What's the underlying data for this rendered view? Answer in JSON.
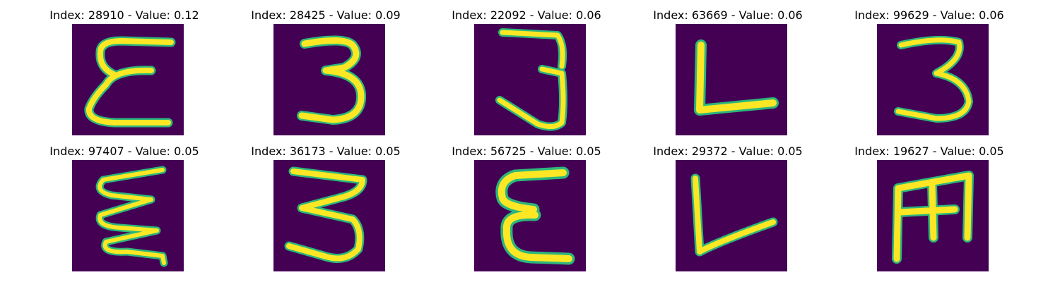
{
  "panels": [
    {
      "title": "Index: 28910 - Value: 0.12",
      "glyph": "epsilon",
      "icon": "handwritten-epsilon-image"
    },
    {
      "title": "Index: 28425 - Value: 0.09",
      "glyph": "three",
      "icon": "handwritten-three-image"
    },
    {
      "title": "Index: 22092 - Value: 0.06",
      "glyph": "three-j",
      "icon": "handwritten-three-image"
    },
    {
      "title": "Index: 63669 - Value: 0.06",
      "glyph": "L",
      "icon": "handwritten-L-image"
    },
    {
      "title": "Index: 99629 - Value: 0.06",
      "glyph": "three-small",
      "icon": "handwritten-three-image"
    },
    {
      "title": "Index: 97407 - Value: 0.05",
      "glyph": "sigma-zigzag",
      "icon": "handwritten-zigzag-image"
    },
    {
      "title": "Index: 36173 - Value: 0.05",
      "glyph": "three-wide",
      "icon": "handwritten-three-image"
    },
    {
      "title": "Index: 56725 - Value: 0.05",
      "glyph": "epsilon-bold",
      "icon": "handwritten-epsilon-image"
    },
    {
      "title": "Index: 29372 - Value: 0.05",
      "glyph": "L-slant",
      "icon": "handwritten-L-image"
    },
    {
      "title": "Index: 19627 - Value: 0.05",
      "glyph": "M-shape",
      "icon": "handwritten-m-image"
    }
  ],
  "colors": {
    "background": "#440154",
    "stroke_edge": "#2db67c",
    "stroke_core": "#fde725"
  }
}
